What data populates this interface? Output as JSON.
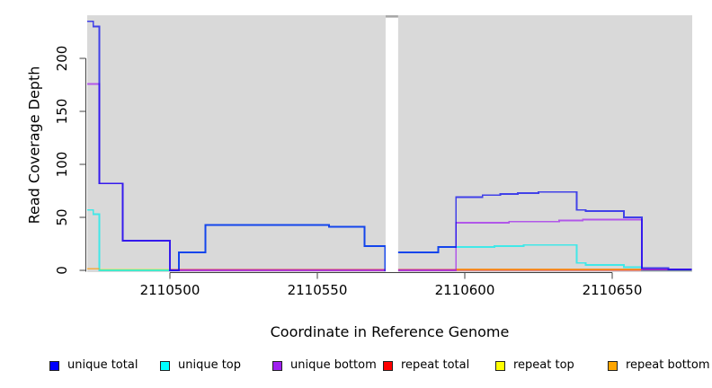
{
  "chart_data": {
    "type": "line",
    "subtype": "step-coverage",
    "title": "",
    "xlabel": "Coordinate in Reference Genome",
    "ylabel": "Read Coverage Depth",
    "xlim": [
      2110472,
      2110677
    ],
    "ylim": [
      0,
      241
    ],
    "x_ticks": [
      2110500,
      2110550,
      2110600,
      2110650
    ],
    "y_ticks": [
      0,
      50,
      100,
      150,
      200
    ],
    "grid": false,
    "plot_bg_color": "#d9d9d9",
    "no_data_gap": {
      "x_start": 2110573,
      "x_end": 2110577
    },
    "legend_position": "bottom",
    "series": [
      {
        "name": "repeat top",
        "color": "#e8e800",
        "segments": [
          [
            [
              2110476,
              0.5
            ],
            [
              2110500,
              0.5
            ]
          ]
        ]
      },
      {
        "name": "unique top",
        "color": "#00eeee",
        "segments": [
          [
            [
              2110472,
              57
            ],
            [
              2110474,
              53
            ],
            [
              2110476,
              0
            ],
            [
              2110503,
              17
            ],
            [
              2110512,
              43
            ],
            [
              2110554,
              41
            ],
            [
              2110566,
              23
            ],
            [
              2110573,
              0
            ],
            [
              2110577,
              17
            ],
            [
              2110591,
              22
            ],
            [
              2110597,
              22
            ],
            [
              2110610,
              23
            ],
            [
              2110620,
              24
            ],
            [
              2110638,
              7
            ],
            [
              2110641,
              5
            ],
            [
              2110654,
              3
            ],
            [
              2110660,
              0
            ],
            [
              2110677,
              0
            ]
          ]
        ]
      },
      {
        "name": "repeat total",
        "color": "#e00020",
        "segments": [
          [
            [
              2110500,
              0.5
            ],
            [
              2110677,
              0.5
            ]
          ]
        ]
      },
      {
        "name": "repeat bottom",
        "color": "#ff9900",
        "segments": [
          [
            [
              2110472,
              1.5
            ],
            [
              2110476,
              1.5
            ]
          ],
          [
            [
              2110597,
              1
            ],
            [
              2110660,
              0
            ]
          ]
        ]
      },
      {
        "name": "unique bottom",
        "color": "#a020f0",
        "segments": [
          [
            [
              2110472,
              176
            ],
            [
              2110476,
              82
            ],
            [
              2110484,
              28
            ],
            [
              2110500,
              0
            ],
            [
              2110597,
              45
            ],
            [
              2110615,
              46
            ],
            [
              2110632,
              47
            ],
            [
              2110640,
              48
            ],
            [
              2110660,
              1
            ],
            [
              2110677,
              1
            ]
          ]
        ]
      },
      {
        "name": "unique total",
        "color": "#0000ee",
        "segments": [
          [
            [
              2110472,
              235
            ],
            [
              2110474,
              230
            ],
            [
              2110476,
              82
            ],
            [
              2110484,
              28
            ],
            [
              2110500,
              0
            ],
            [
              2110503,
              17
            ],
            [
              2110512,
              43
            ],
            [
              2110554,
              41
            ],
            [
              2110566,
              23
            ],
            [
              2110573,
              0
            ],
            [
              2110577,
              17
            ],
            [
              2110591,
              22
            ],
            [
              2110597,
              69
            ],
            [
              2110606,
              71
            ],
            [
              2110612,
              72
            ],
            [
              2110618,
              73
            ],
            [
              2110625,
              74
            ],
            [
              2110638,
              57
            ],
            [
              2110641,
              56
            ],
            [
              2110654,
              50
            ],
            [
              2110660,
              2
            ],
            [
              2110669,
              1
            ],
            [
              2110677,
              1
            ]
          ]
        ]
      }
    ],
    "legend": [
      {
        "label": "unique total",
        "color": "#0000ff"
      },
      {
        "label": "unique top",
        "color": "#00ffff"
      },
      {
        "label": "unique bottom",
        "color": "#a020f0"
      },
      {
        "label": "repeat total",
        "color": "#ff0000"
      },
      {
        "label": "repeat top",
        "color": "#ffff00"
      },
      {
        "label": "repeat bottom",
        "color": "#ffa500"
      }
    ]
  }
}
